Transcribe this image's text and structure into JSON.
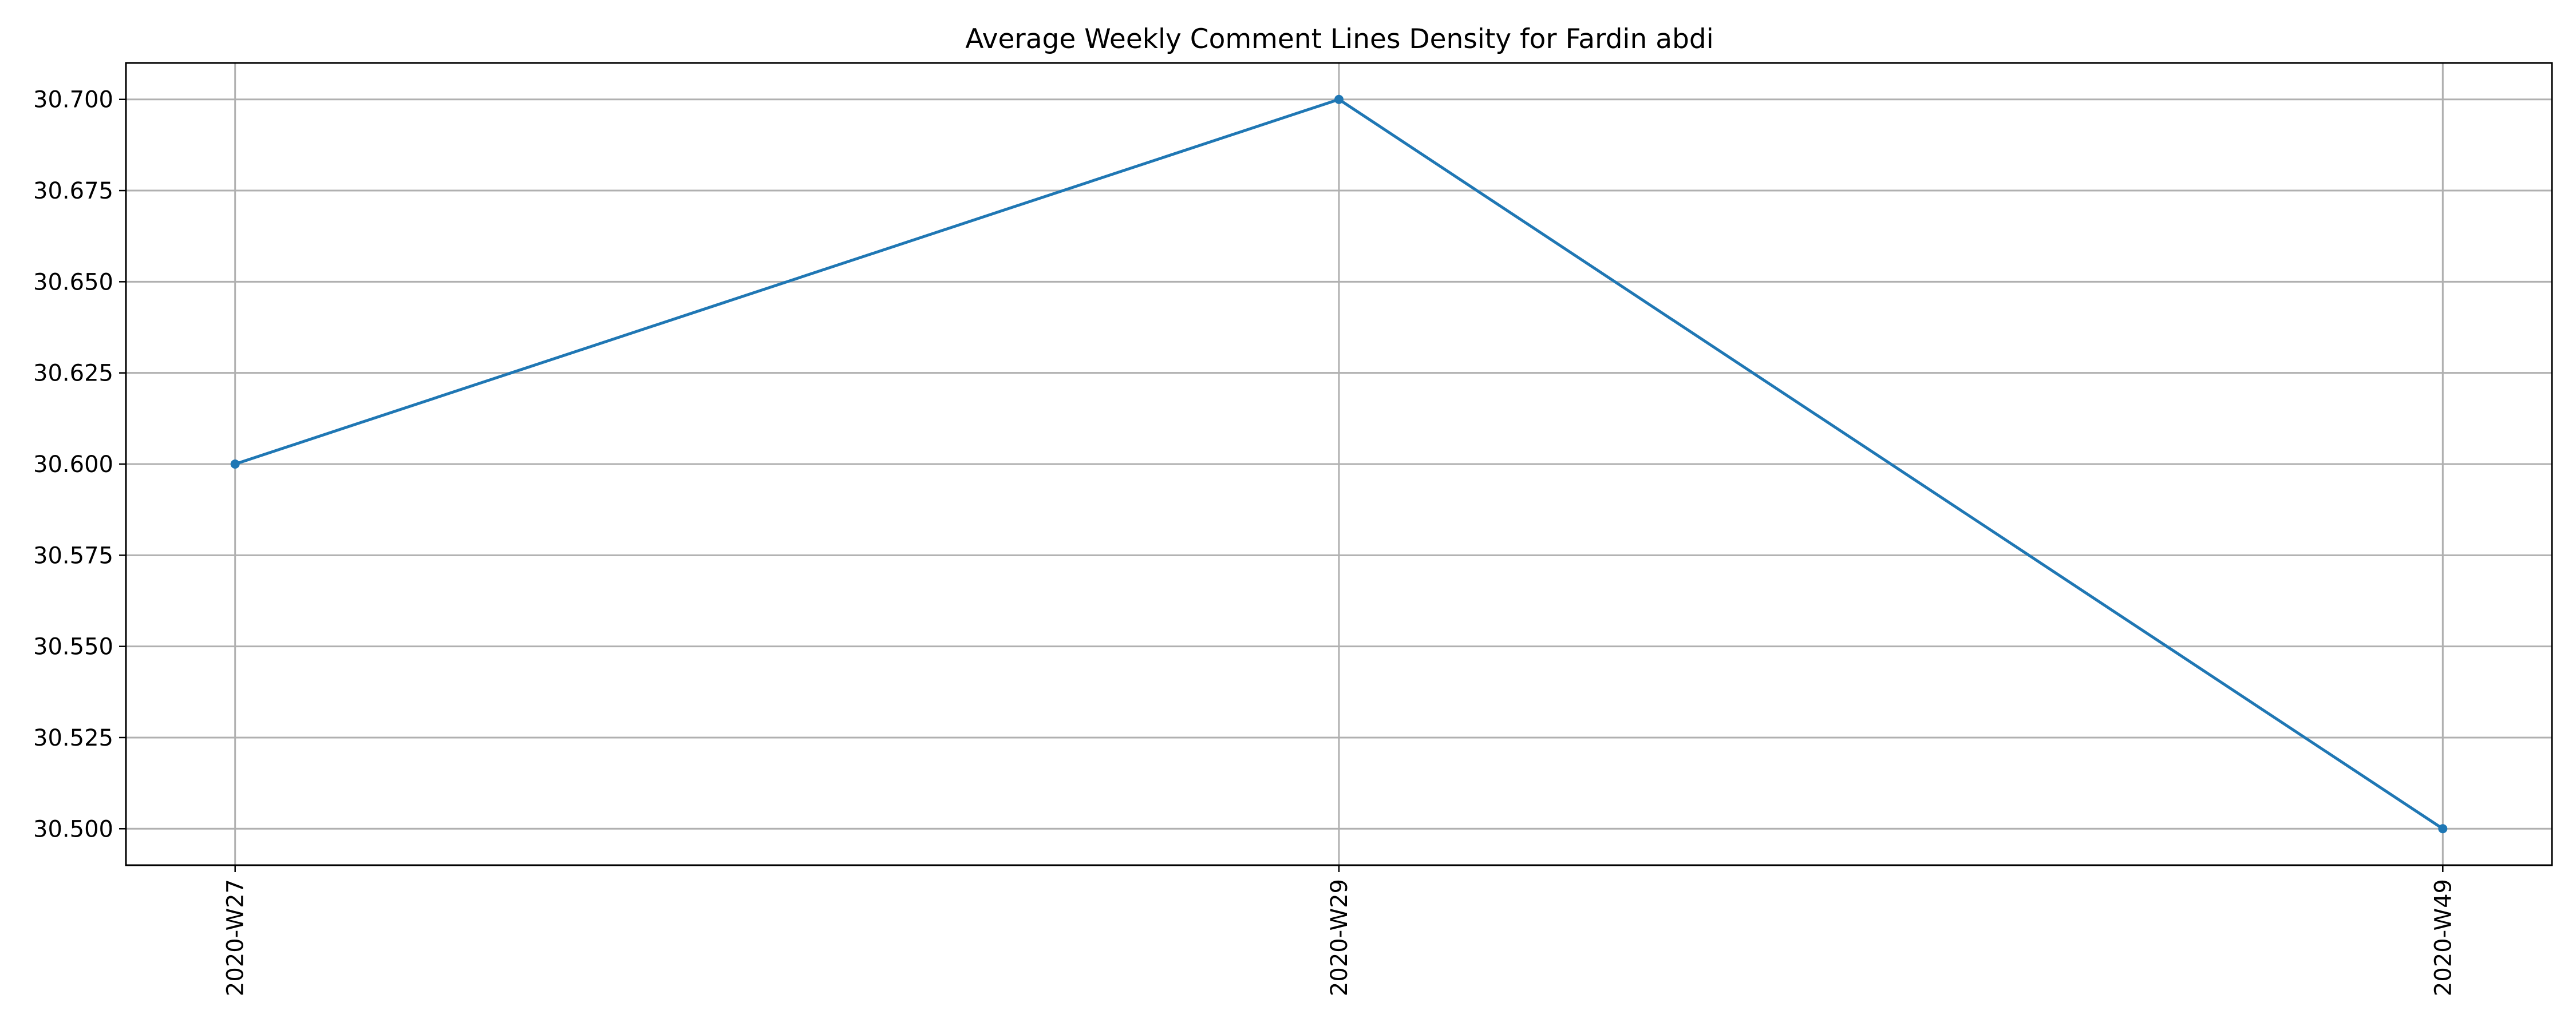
{
  "chart_data": {
    "type": "line",
    "title": "Average Weekly Comment Lines Density for Fardin abdi",
    "xlabel": "",
    "ylabel": "",
    "categories": [
      "2020-W27",
      "2020-W29",
      "2020-W49"
    ],
    "series": [
      {
        "values": [
          30.6,
          30.7,
          30.5
        ],
        "color": "#1f77b4",
        "marker": "circle"
      }
    ],
    "ylim": [
      30.49,
      30.71
    ],
    "yticks": [
      30.5,
      30.525,
      30.55,
      30.575,
      30.6,
      30.625,
      30.65,
      30.675,
      30.7
    ],
    "ytick_labels": [
      "30.500",
      "30.525",
      "30.550",
      "30.575",
      "30.600",
      "30.625",
      "30.650",
      "30.675",
      "30.700"
    ],
    "x_tick_rotation": -90,
    "grid": true,
    "legend": "none"
  }
}
